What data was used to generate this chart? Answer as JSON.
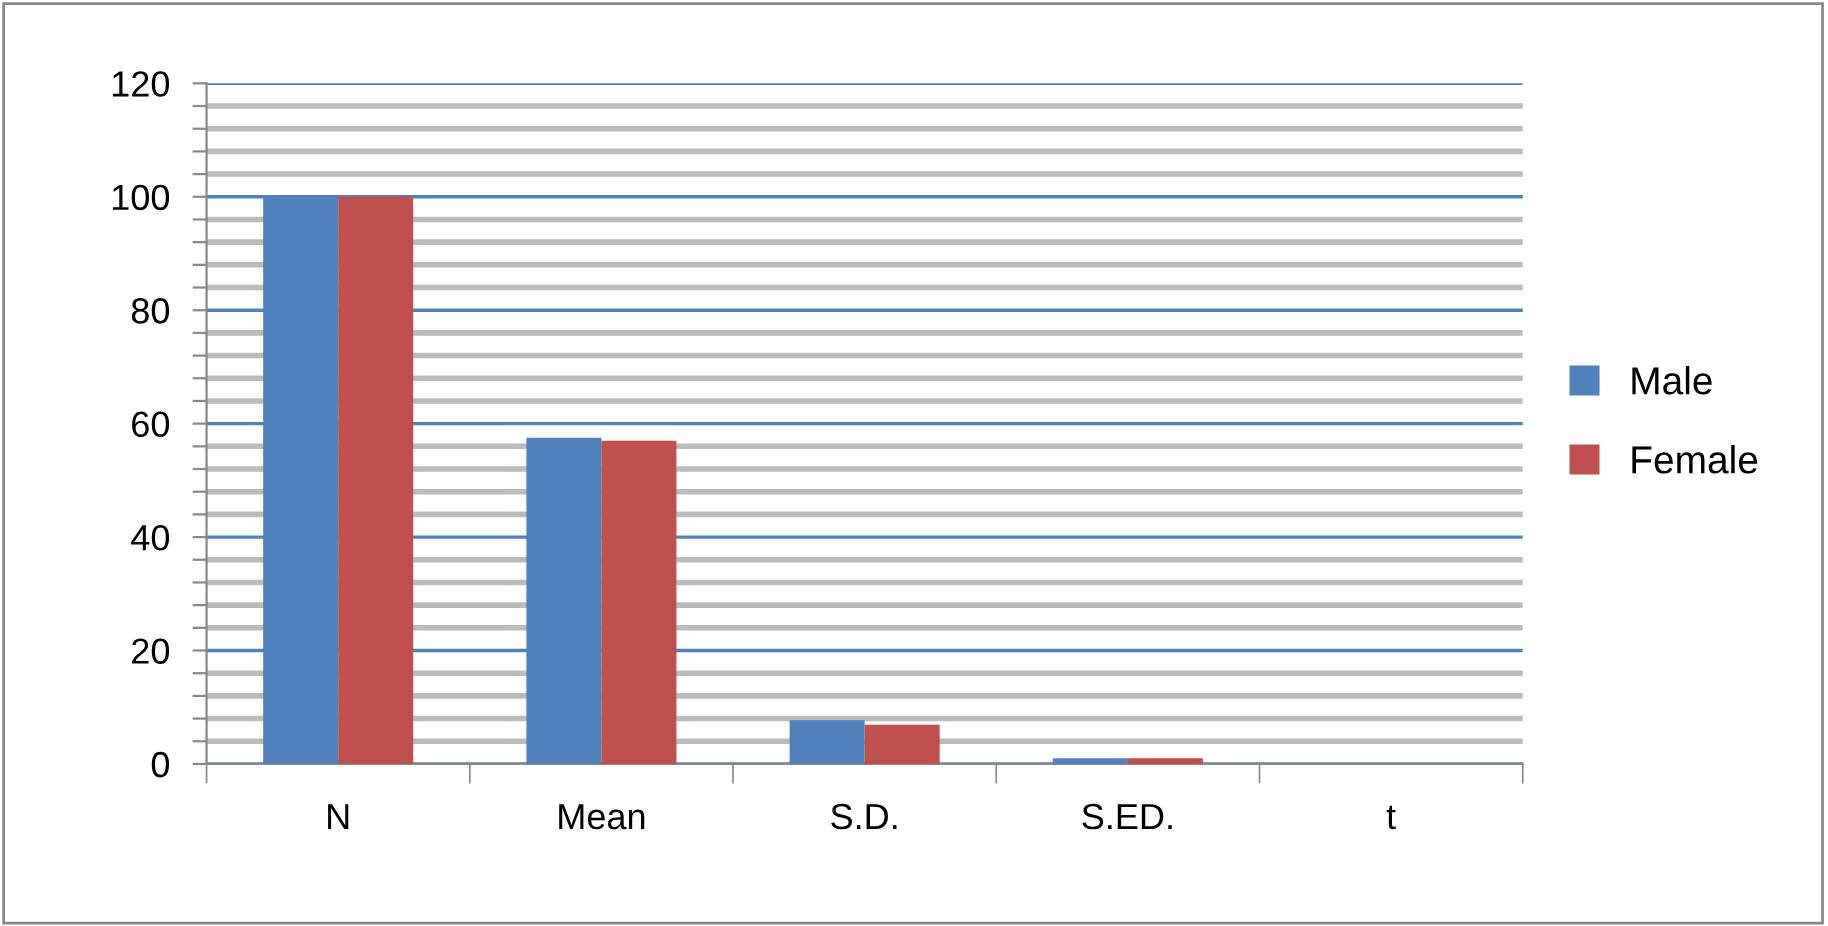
{
  "chart_data": {
    "type": "bar",
    "categories": [
      "N",
      "Mean",
      "S.D.",
      "S.ED.",
      "t"
    ],
    "series": [
      {
        "name": "Male",
        "color": "#4f81bd",
        "values": [
          100,
          57.5,
          7.7,
          1,
          0
        ]
      },
      {
        "name": "Female",
        "color": "#c0504d",
        "values": [
          100,
          57,
          6.9,
          1,
          0
        ]
      }
    ],
    "ylim": [
      0,
      120
    ],
    "yticks": [
      0,
      {
        "value": 4,
        "label": null
      },
      {
        "value": 8,
        "label": null
      },
      {
        "value": 12,
        "label": null
      },
      {
        "value": 16,
        "label": null
      },
      20,
      {
        "value": 24,
        "label": null
      },
      {
        "value": 28,
        "label": null
      },
      {
        "value": 32,
        "label": null
      },
      {
        "value": 36,
        "label": null
      },
      40,
      {
        "value": 44,
        "label": null
      },
      {
        "value": 48,
        "label": null
      },
      {
        "value": 52,
        "label": null
      },
      {
        "value": 56,
        "label": null
      },
      60,
      {
        "value": 64,
        "label": null
      },
      {
        "value": 68,
        "label": null
      },
      {
        "value": 72,
        "label": null
      },
      {
        "value": 76,
        "label": null
      },
      80,
      {
        "value": 84,
        "label": null
      },
      {
        "value": 88,
        "label": null
      },
      {
        "value": 92,
        "label": null
      },
      {
        "value": 96,
        "label": null
      },
      100,
      {
        "value": 104,
        "label": null
      },
      {
        "value": 108,
        "label": null
      },
      {
        "value": 112,
        "label": null
      },
      {
        "value": 116,
        "label": null
      },
      120
    ],
    "grid": "y",
    "legend": "right"
  }
}
